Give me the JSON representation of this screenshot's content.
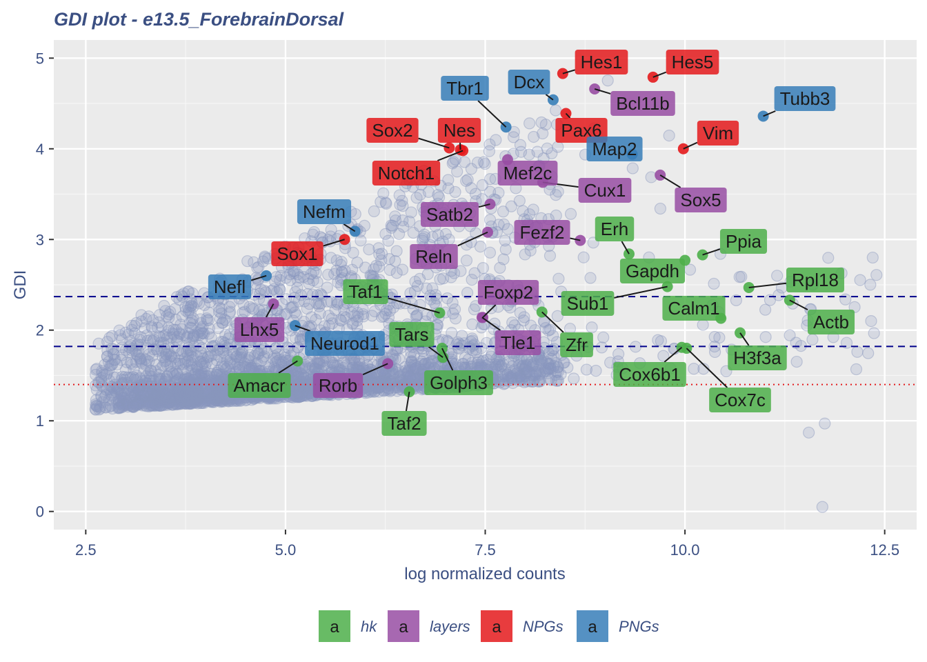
{
  "chart_data": {
    "type": "scatter",
    "title": "GDI plot - e13.5_ForebrainDorsal",
    "xlabel": "log normalized counts",
    "ylabel": "GDI",
    "xlim": [
      2.1,
      12.9
    ],
    "ylim": [
      -0.2,
      5.2
    ],
    "x_ticks": [
      2.5,
      5.0,
      7.5,
      10.0,
      12.5
    ],
    "x_tick_labels": [
      "2.5",
      "5.0",
      "7.5",
      "10.0",
      "12.5"
    ],
    "y_ticks": [
      0,
      1,
      2,
      3,
      4,
      5
    ],
    "y_tick_labels": [
      "0",
      "1",
      "2",
      "3",
      "4",
      "5"
    ],
    "grid": true,
    "legend_position": "bottom",
    "reference_lines": [
      {
        "y": 2.37,
        "style": "dashed",
        "color": "#00008b"
      },
      {
        "y": 1.82,
        "style": "dashed",
        "color": "#00008b"
      },
      {
        "y": 1.4,
        "style": "dotted",
        "color": "#e41a1c"
      }
    ],
    "background_points_color": "#8a96bd",
    "categories": [
      {
        "name": "hk",
        "color": "#4daf4a"
      },
      {
        "name": "layers",
        "color": "#984ea3"
      },
      {
        "name": "NPGs",
        "color": "#e41a1c"
      },
      {
        "name": "PNGs",
        "color": "#377eb8"
      }
    ],
    "legend_key_letter": "a",
    "highlighted_genes": [
      {
        "label": "Hes1",
        "x": 8.47,
        "y": 4.83,
        "group": "NPGs"
      },
      {
        "label": "Hes5",
        "x": 9.6,
        "y": 4.79,
        "group": "NPGs"
      },
      {
        "label": "Dcx",
        "x": 8.35,
        "y": 4.54,
        "group": "PNGs"
      },
      {
        "label": "Tbr1",
        "x": 7.76,
        "y": 4.24,
        "group": "PNGs"
      },
      {
        "label": "Bcl11b",
        "x": 8.87,
        "y": 4.66,
        "group": "layers"
      },
      {
        "label": "Tubb3",
        "x": 10.98,
        "y": 4.36,
        "group": "PNGs"
      },
      {
        "label": "Sox2",
        "x": 7.05,
        "y": 4.01,
        "group": "NPGs"
      },
      {
        "label": "Nes",
        "x": 7.19,
        "y": 3.99,
        "group": "NPGs"
      },
      {
        "label": "Pax6",
        "x": 8.51,
        "y": 4.39,
        "group": "NPGs"
      },
      {
        "label": "Map2",
        "x": 9.34,
        "y": 3.94,
        "group": "PNGs"
      },
      {
        "label": "Vim",
        "x": 9.98,
        "y": 4.0,
        "group": "NPGs"
      },
      {
        "label": "Notch1",
        "x": 7.22,
        "y": 3.98,
        "group": "NPGs"
      },
      {
        "label": "Mef2c",
        "x": 7.78,
        "y": 3.88,
        "group": "layers"
      },
      {
        "label": "Cux1",
        "x": 8.22,
        "y": 3.63,
        "group": "layers"
      },
      {
        "label": "Sox5",
        "x": 9.69,
        "y": 3.71,
        "group": "layers"
      },
      {
        "label": "Satb2",
        "x": 7.56,
        "y": 3.39,
        "group": "layers"
      },
      {
        "label": "Nefm",
        "x": 5.87,
        "y": 3.09,
        "group": "PNGs"
      },
      {
        "label": "Fezf2",
        "x": 8.69,
        "y": 2.99,
        "group": "layers"
      },
      {
        "label": "Erh",
        "x": 9.3,
        "y": 2.84,
        "group": "hk"
      },
      {
        "label": "Ppia",
        "x": 10.22,
        "y": 2.83,
        "group": "hk"
      },
      {
        "label": "Sox1",
        "x": 5.74,
        "y": 3.0,
        "group": "NPGs"
      },
      {
        "label": "Reln",
        "x": 7.53,
        "y": 3.08,
        "group": "layers"
      },
      {
        "label": "Gapdh",
        "x": 10.0,
        "y": 2.77,
        "group": "hk"
      },
      {
        "label": "Nefl",
        "x": 4.76,
        "y": 2.6,
        "group": "PNGs"
      },
      {
        "label": "Taf1",
        "x": 6.93,
        "y": 2.19,
        "group": "hk"
      },
      {
        "label": "Foxp2",
        "x": 7.47,
        "y": 2.14,
        "group": "layers"
      },
      {
        "label": "Sub1",
        "x": 9.78,
        "y": 2.48,
        "group": "hk"
      },
      {
        "label": "Rpl18",
        "x": 10.8,
        "y": 2.47,
        "group": "hk"
      },
      {
        "label": "Calm1",
        "x": 10.45,
        "y": 2.13,
        "group": "hk"
      },
      {
        "label": "Lhx5",
        "x": 4.85,
        "y": 2.29,
        "group": "layers"
      },
      {
        "label": "Tars",
        "x": 6.97,
        "y": 1.7,
        "group": "hk"
      },
      {
        "label": "Actb",
        "x": 11.31,
        "y": 2.33,
        "group": "hk"
      },
      {
        "label": "Neurod1",
        "x": 5.12,
        "y": 2.05,
        "group": "PNGs"
      },
      {
        "label": "Tle1",
        "x": 7.46,
        "y": 2.14,
        "group": "layers"
      },
      {
        "label": "Zfr",
        "x": 8.21,
        "y": 2.2,
        "group": "hk"
      },
      {
        "label": "H3f3a",
        "x": 10.69,
        "y": 1.97,
        "group": "hk"
      },
      {
        "label": "Amacr",
        "x": 5.15,
        "y": 1.66,
        "group": "hk"
      },
      {
        "label": "Rorb",
        "x": 6.28,
        "y": 1.63,
        "group": "layers"
      },
      {
        "label": "Golph3",
        "x": 6.96,
        "y": 1.8,
        "group": "hk"
      },
      {
        "label": "Cox6b1",
        "x": 9.96,
        "y": 1.81,
        "group": "hk"
      },
      {
        "label": "Cox7c",
        "x": 10.02,
        "y": 1.8,
        "group": "hk"
      },
      {
        "label": "Taf2",
        "x": 6.55,
        "y": 1.32,
        "group": "hk"
      }
    ]
  }
}
